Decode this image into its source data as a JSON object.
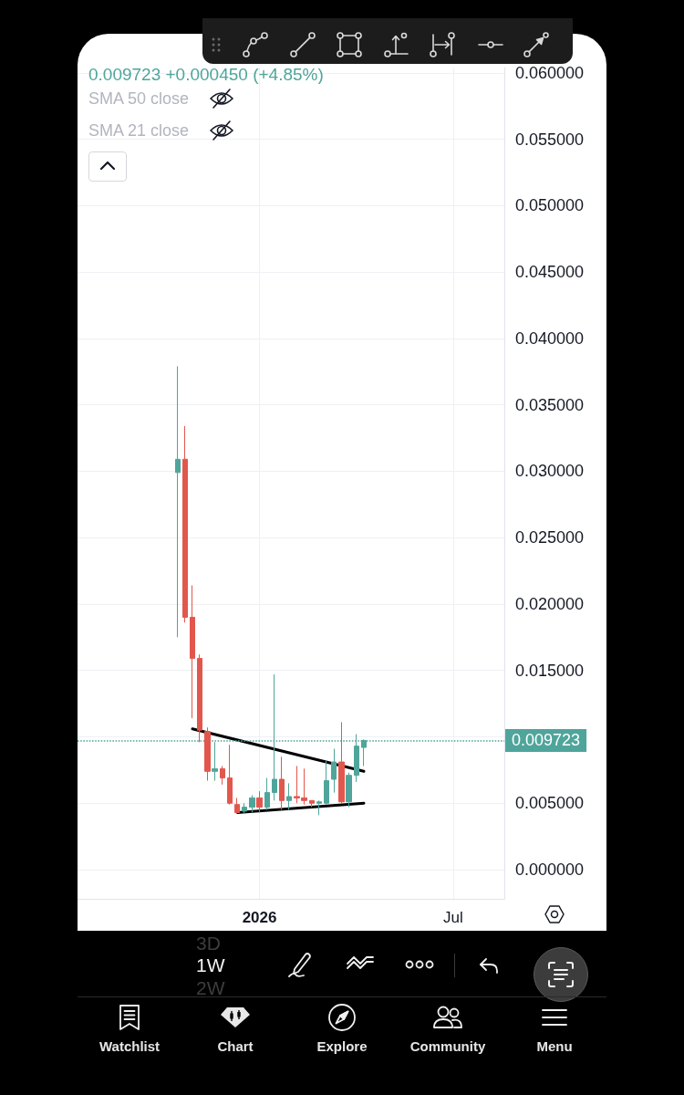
{
  "chart_data": {
    "type": "candlestick",
    "x": [
      "2025-10-20",
      "2025-10-27",
      "2025-11-03",
      "2025-11-10",
      "2025-11-17",
      "2025-11-24",
      "2025-12-01",
      "2025-12-08",
      "2025-12-15",
      "2025-12-22",
      "2025-12-29",
      "2026-01-05",
      "2026-01-12",
      "2026-01-19",
      "2026-01-26",
      "2026-02-02",
      "2026-02-09",
      "2026-02-16",
      "2026-02-23",
      "2026-03-02",
      "2026-03-09",
      "2026-03-16",
      "2026-03-23",
      "2026-03-30",
      "2026-04-06",
      "2026-04-13"
    ],
    "ohlc": [
      [
        0.0299,
        0.0379,
        0.0175,
        0.0309
      ],
      [
        0.0309,
        0.0334,
        0.0186,
        0.019
      ],
      [
        0.019,
        0.0214,
        0.0114,
        0.0159
      ],
      [
        0.0159,
        0.0162,
        0.0096,
        0.0105
      ],
      [
        0.0104,
        0.0107,
        0.0067,
        0.0074
      ],
      [
        0.0074,
        0.0096,
        0.0067,
        0.0076
      ],
      [
        0.0076,
        0.0078,
        0.0064,
        0.0069
      ],
      [
        0.0069,
        0.0094,
        0.0049,
        0.005
      ],
      [
        0.0049,
        0.0054,
        0.0042,
        0.0043
      ],
      [
        0.0044,
        0.005,
        0.0042,
        0.0047
      ],
      [
        0.0047,
        0.0056,
        0.0043,
        0.0054
      ],
      [
        0.0054,
        0.0059,
        0.0043,
        0.0047
      ],
      [
        0.0047,
        0.0069,
        0.0045,
        0.0058
      ],
      [
        0.0058,
        0.0147,
        0.0052,
        0.0068
      ],
      [
        0.0068,
        0.0085,
        0.0045,
        0.0052
      ],
      [
        0.0052,
        0.0065,
        0.0045,
        0.0055
      ],
      [
        0.0055,
        0.0078,
        0.005,
        0.0054
      ],
      [
        0.0054,
        0.0076,
        0.0049,
        0.0052
      ],
      [
        0.0052,
        0.0052,
        0.0047,
        0.005
      ],
      [
        0.005,
        0.0052,
        0.0041,
        0.0051
      ],
      [
        0.005,
        0.0082,
        0.0049,
        0.0067
      ],
      [
        0.0068,
        0.0091,
        0.0058,
        0.0081
      ],
      [
        0.0081,
        0.0111,
        0.005,
        0.0051
      ],
      [
        0.0051,
        0.0073,
        0.0047,
        0.0071
      ],
      [
        0.0071,
        0.0102,
        0.0066,
        0.0093
      ],
      [
        0.0092,
        0.0098,
        0.0078,
        0.009723
      ]
    ],
    "colors": [
      "#4fa59b",
      "#e2574d",
      "#e2574d",
      "#e2574d",
      "#e2574d",
      "#4fa59b",
      "#e2574d",
      "#e2574d",
      "#e2574d",
      "#4fa59b",
      "#4fa59b",
      "#e2574d",
      "#4fa59b",
      "#4fa59b",
      "#e2574d",
      "#4fa59b",
      "#e2574d",
      "#e2574d",
      "#e2574d",
      "#4fa59b",
      "#4fa59b",
      "#4fa59b",
      "#e2574d",
      "#4fa59b",
      "#4fa59b",
      "#4fa59b"
    ],
    "series": [
      {
        "type": "line",
        "x": [
          "2025-11-03",
          "2026-04-13"
        ],
        "values": [
          0.0106,
          0.0074
        ],
        "color": "#000000"
      },
      {
        "type": "line",
        "x": [
          "2025-12-15",
          "2026-04-13"
        ],
        "values": [
          0.0043,
          0.005
        ],
        "color": "#000000"
      }
    ],
    "xlim": [
      "2025-07-18",
      "2026-08-23"
    ],
    "xticks": [
      {
        "value": "2026-01-05",
        "label": "2026"
      },
      {
        "value": "2026-07-06",
        "label": "Jul"
      }
    ],
    "ylim": [
      -0.0022,
      0.0604
    ],
    "yticks": [
      {
        "value": 0,
        "label": "0.000000"
      },
      {
        "value": 0.005,
        "label": "0.005000"
      },
      {
        "value": 0.01,
        "label": null
      },
      {
        "value": 0.015,
        "label": "0.015000"
      },
      {
        "value": 0.02,
        "label": "0.020000"
      },
      {
        "value": 0.025,
        "label": "0.025000"
      },
      {
        "value": 0.03,
        "label": "0.030000"
      },
      {
        "value": 0.035,
        "label": "0.035000"
      },
      {
        "value": 0.04,
        "label": "0.040000"
      },
      {
        "value": 0.045,
        "label": "0.045000"
      },
      {
        "value": 0.05,
        "label": "0.050000"
      },
      {
        "value": 0.055,
        "label": "0.055000"
      },
      {
        "value": 0.06,
        "label": "0.060000"
      }
    ],
    "ref_lines": [
      {
        "axis": "y",
        "value": 0.009723,
        "label": "0.009723",
        "color": "#4fa59b",
        "line_style": "dotted"
      }
    ],
    "grid": true,
    "annotations": [
      "0.009723 +0.000450 (+4.85%)",
      "SMA 50 close",
      "SMA 21 close",
      "3D",
      "1W",
      "2W",
      "Watchlist",
      "Chart",
      "Explore",
      "Community",
      "Menu"
    ]
  }
}
